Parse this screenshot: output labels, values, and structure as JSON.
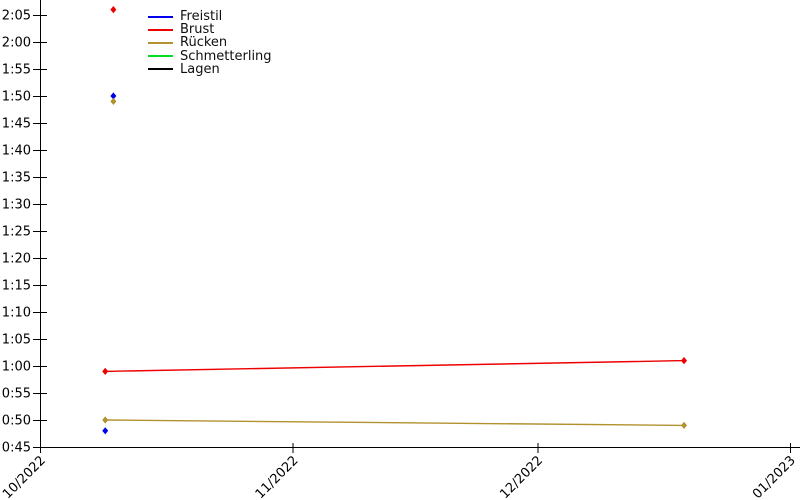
{
  "figure": {
    "background_color": "#ffffff",
    "text_color": "#000000",
    "title": ""
  },
  "chart_data": {
    "type": "line",
    "title": "",
    "xlabel": "",
    "ylabel": "",
    "grid": false,
    "legend_position": "top-left-inside",
    "marker_shape": "diamond",
    "x_axis": {
      "tick_labels": [
        "10/2022",
        "11/2022",
        "12/2022",
        "01/2023"
      ],
      "tick_dates": [
        "2022-10-01",
        "2022-11-01",
        "2022-12-01",
        "2023-01-01"
      ],
      "range_dates": [
        "2022-10-01",
        "2023-01-01"
      ]
    },
    "y_axis": {
      "unit": "m:ss",
      "tick_labels": [
        "0:45",
        "0:50",
        "0:55",
        "1:00",
        "1:05",
        "1:10",
        "1:15",
        "1:20",
        "1:25",
        "1:30",
        "1:35",
        "1:40",
        "1:45",
        "1:50",
        "1:55",
        "2:00",
        "2:05"
      ],
      "tick_seconds": [
        45,
        50,
        55,
        60,
        65,
        70,
        75,
        80,
        85,
        90,
        95,
        100,
        105,
        110,
        115,
        120,
        125
      ],
      "range_seconds": [
        45,
        125
      ]
    },
    "series": [
      {
        "name": "Freistil",
        "color": "#0000ee",
        "runs": [
          [
            {
              "date": "2022-10-09",
              "time": "0:48",
              "seconds": 48
            }
          ],
          [
            {
              "date": "2022-10-10",
              "time": "1:50",
              "seconds": 110
            }
          ]
        ]
      },
      {
        "name": "Brust",
        "color": "#ee0000",
        "runs": [
          [
            {
              "date": "2022-10-09",
              "time": "0:59",
              "seconds": 59
            },
            {
              "date": "2022-12-19",
              "time": "1:01",
              "seconds": 61
            }
          ],
          [
            {
              "date": "2022-10-10",
              "time": "2:06",
              "seconds": 126
            }
          ]
        ]
      },
      {
        "name": "Rücken",
        "color": "#b2912f",
        "runs": [
          [
            {
              "date": "2022-10-09",
              "time": "0:50",
              "seconds": 50
            },
            {
              "date": "2022-12-19",
              "time": "0:49",
              "seconds": 49
            }
          ],
          [
            {
              "date": "2022-10-10",
              "time": "1:49",
              "seconds": 109
            }
          ]
        ]
      },
      {
        "name": "Schmetterling",
        "color": "#00dd22",
        "runs": []
      },
      {
        "name": "Lagen",
        "color": "#000000",
        "runs": []
      }
    ]
  }
}
